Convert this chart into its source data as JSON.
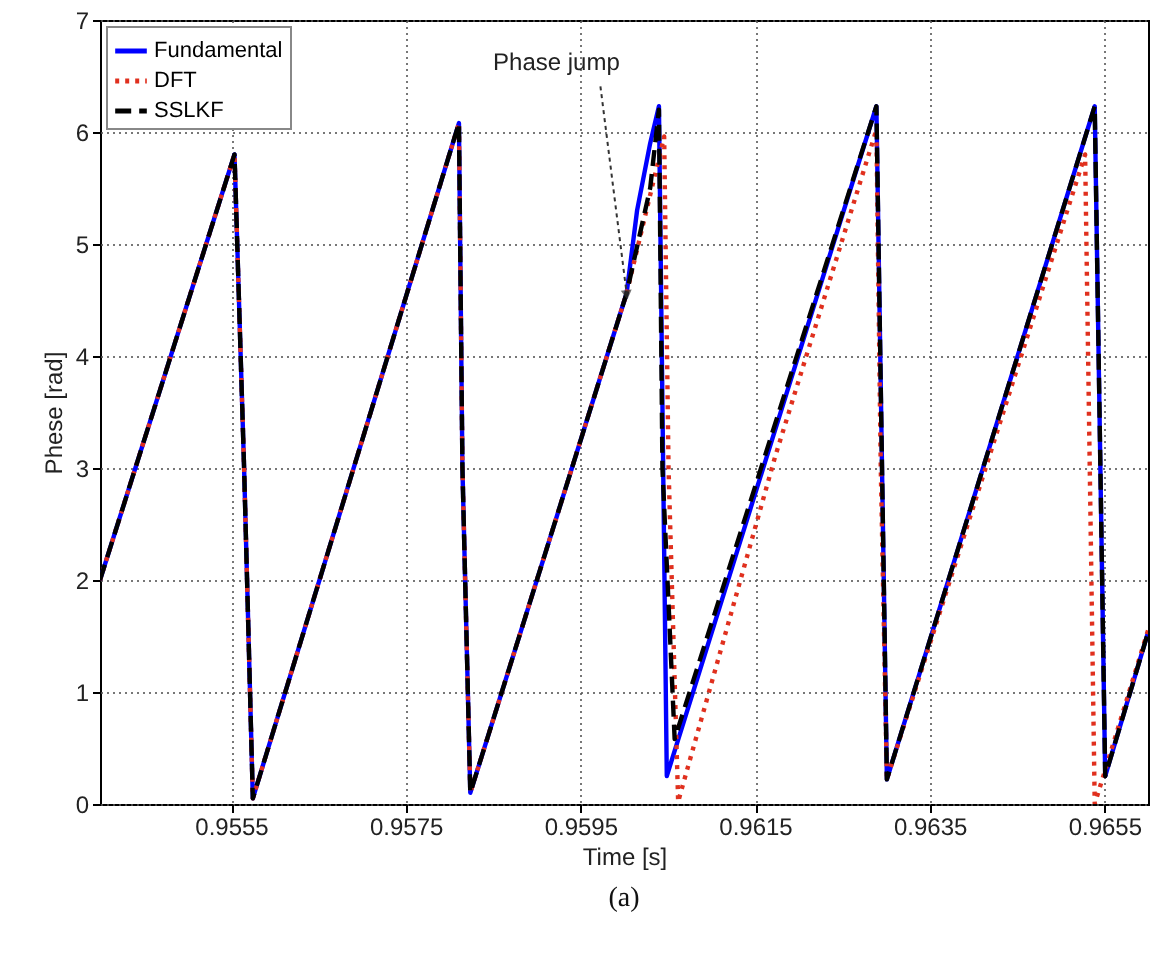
{
  "chart_data": {
    "type": "line",
    "xlabel": "Time [s]",
    "ylabel": "Phese [rad]",
    "xlim": [
      0.954,
      0.966
    ],
    "ylim": [
      0,
      7
    ],
    "xticks": [
      0.9555,
      0.9575,
      0.9595,
      0.9615,
      0.9635,
      0.9655
    ],
    "yticks": [
      0,
      1,
      2,
      3,
      4,
      5,
      6,
      7
    ],
    "grid": true,
    "legend": "top left",
    "annotations": [
      {
        "text": "Phase jump",
        "x": 0.96003,
        "y": 4.56
      },
      "(a)"
    ],
    "series": [
      {
        "name": "Fundamental",
        "color": "#0000ff",
        "line_style": "solid",
        "x": [
          0.954,
          0.95554,
          0.95565,
          0.95575,
          0.95811,
          0.95815,
          0.95824,
          0.96003,
          0.96015,
          0.9603,
          0.9604,
          0.96049,
          0.96289,
          0.96301,
          0.96539,
          0.96551,
          0.966
        ],
        "values": [
          2,
          5.8,
          3,
          0.05,
          6.08,
          3,
          0.1,
          4.56,
          5.3,
          5.9,
          6.23,
          0.25,
          6.23,
          0.22,
          6.23,
          0.25,
          1.53
        ]
      },
      {
        "name": "DFT",
        "color": "#e0301e",
        "line_style": "dotted",
        "x": [
          0.954,
          0.95554,
          0.95565,
          0.95575,
          0.95811,
          0.95815,
          0.95824,
          0.96003,
          0.96046,
          0.96051,
          0.96062,
          0.96173,
          0.96289,
          0.96294,
          0.96301,
          0.96528,
          0.96539,
          0.966
        ],
        "values": [
          2,
          5.8,
          3,
          0.05,
          6.08,
          3,
          0.1,
          4.56,
          5.96,
          3,
          0.02,
          3.1,
          6.02,
          3,
          0.22,
          5.8,
          0,
          1.55
        ]
      },
      {
        "name": "SSLKF",
        "color": "#000000",
        "line_style": "dashed",
        "x": [
          0.954,
          0.95554,
          0.95565,
          0.95575,
          0.95811,
          0.95815,
          0.95824,
          0.96003,
          0.9603,
          0.9604,
          0.96044,
          0.96058,
          0.96289,
          0.96301,
          0.96539,
          0.96551,
          0.966
        ],
        "values": [
          2,
          5.8,
          3,
          0.05,
          6.08,
          3,
          0.1,
          4.56,
          5.5,
          6.2,
          3,
          0.58,
          6.23,
          0.22,
          6.23,
          0.25,
          1.53
        ]
      }
    ]
  }
}
